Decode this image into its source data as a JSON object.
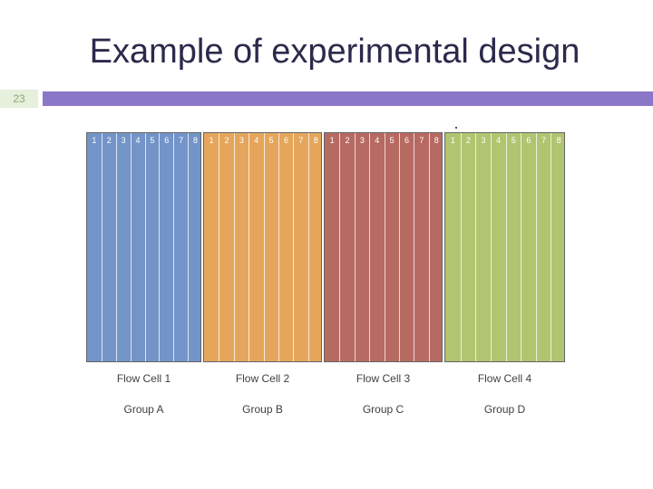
{
  "slide": {
    "title": "Example of experimental design",
    "number": "23"
  },
  "diagram": {
    "lane_numbers": [
      "1",
      "2",
      "3",
      "4",
      "5",
      "6",
      "7",
      "8"
    ],
    "flow_cells": [
      {
        "label": "Flow Cell 1",
        "group": "Group A",
        "color": "#7394c8"
      },
      {
        "label": "Flow Cell 2",
        "group": "Group B",
        "color": "#e5a65b"
      },
      {
        "label": "Flow Cell 3",
        "group": "Group C",
        "color": "#b76a62"
      },
      {
        "label": "Flow Cell 4",
        "group": "Group D",
        "color": "#b1c46f"
      }
    ]
  },
  "colors": {
    "header_bar": "#8b77c8",
    "title_text": "#2b2a4c",
    "slide_number_bg": "#e6f0dc"
  }
}
